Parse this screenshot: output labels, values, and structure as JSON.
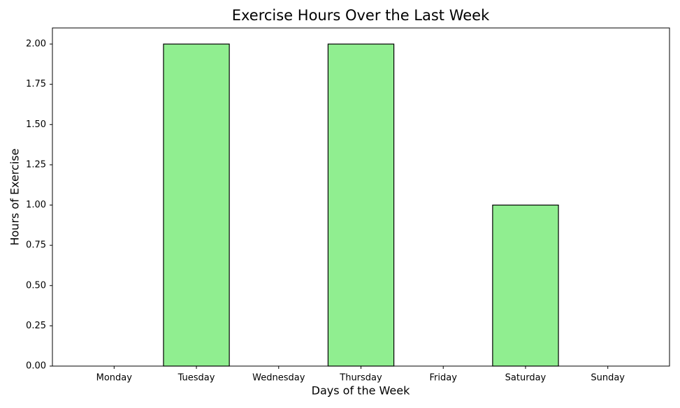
{
  "chart_data": {
    "type": "bar",
    "title": "Exercise Hours Over the Last Week",
    "x_label": "Days of the Week",
    "y_label": "Hours of Exercise",
    "categories": [
      "Monday",
      "Tuesday",
      "Wednesday",
      "Thursday",
      "Friday",
      "Saturday",
      "Sunday"
    ],
    "values": [
      0,
      2,
      0,
      2,
      0,
      1,
      0
    ],
    "color": "#90ee90",
    "edge_color": "#000000",
    "ylim": [
      0,
      2.1
    ],
    "yticks": [
      {
        "value": 0,
        "label": "0.00"
      },
      {
        "value": 0.25,
        "label": "0.25"
      },
      {
        "value": 0.5,
        "label": "0.50"
      },
      {
        "value": 0.75,
        "label": "0.75"
      },
      {
        "value": 1,
        "label": "1.00"
      },
      {
        "value": 1.25,
        "label": "1.25"
      },
      {
        "value": 1.5,
        "label": "1.50"
      },
      {
        "value": 1.75,
        "label": "1.75"
      },
      {
        "value": 2,
        "label": "2.00"
      }
    ],
    "grid": false
  }
}
